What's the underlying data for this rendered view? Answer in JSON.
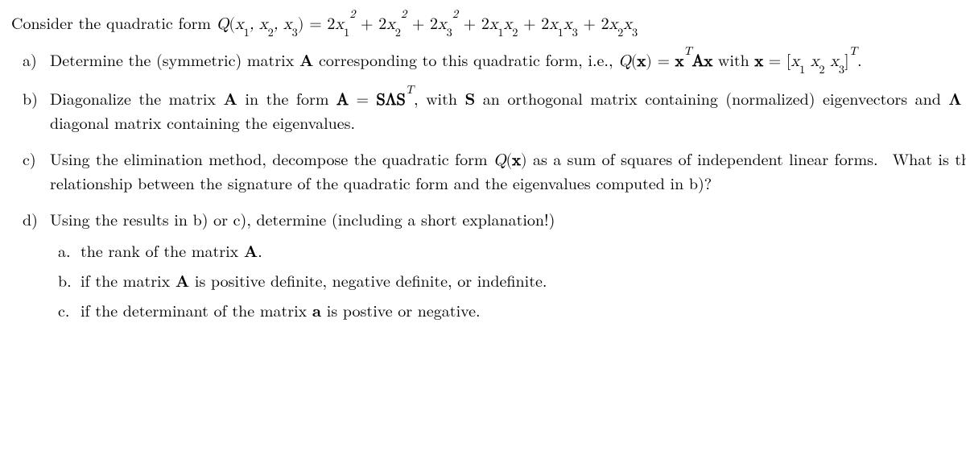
{
  "intro_prefix": "Consider the quadratic form ",
  "intro_formula_html": "<span class=\"math\">Q<span class=\"rm\">(</span>x<sub>1</sub>, x<sub>2</sub>, x<sub>3</sub><span class=\"rm\">)</span> <span class=\"rm\">=</span> <span class=\"rm\">2</span>x<sub>1</sub><sup>2</sup> <span class=\"rm\">+</span> <span class=\"rm\">2</span>x<sub>2</sub><sup>2</sup> <span class=\"rm\">+</span> <span class=\"rm\">2</span>x<sub>3</sub><sup>2</sup> <span class=\"rm\">+</span> <span class=\"rm\">2</span>x<sub>1</sub>x<sub>2</sub> <span class=\"rm\">+</span> <span class=\"rm\">2</span>x<sub>1</sub>x<sub>3</sub> <span class=\"rm\">+</span> <span class=\"rm\">2</span>x<sub>2</sub>x<sub>3</sub></span>",
  "items": [
    {
      "marker": "a)",
      "html": "Determine the (symmetric) matrix <span class=\"bold\">A</span> corresponding to this quadratic form, i.e., <span class=\"math\">Q<span class=\"rm\">(</span><span class=\"bold\">x</span><span class=\"rm\">)</span> <span class=\"rm\">=</span> <span class=\"bold\">x</span><sup>T</sup><span class=\"bold\">Ax</span></span> with <span class=\"math\"><span class=\"bold\">x</span> <span class=\"rm\">=</span> <span class=\"rm\">[</span>x<sub>1</sub>&nbsp;x<sub>2</sub>&nbsp;x<sub>3</sub><span class=\"rm\">]</span><sup>T</sup></span>."
    },
    {
      "marker": "b)",
      "html": "Diagonalize the matrix <span class=\"bold\">A</span> in the form <span class=\"math\"><span class=\"bold\">A</span> <span class=\"rm\">=</span> <span class=\"bold\">SΛS</span><sup>T</sup></span>, with <span class=\"bold\">S</span> an orthogonal matrix containing (normalized) eigenvectors and <span class=\"bold\">Λ</span> a diagonal matrix containing the eigenvalues."
    },
    {
      "marker": "c)",
      "html": "Using the elimination method, decompose the quadratic form <span class=\"math\">Q<span class=\"rm\">(</span><span class=\"bold\">x</span><span class=\"rm\">)</span></span> as a sum of squares of independent linear forms.&nbsp; What is the relationship between the signature of the quadratic form and the eigenvalues computed in b)?"
    },
    {
      "marker": "d)",
      "html": "Using the results in b) or c), determine (including a short explanation!)",
      "sub": [
        {
          "marker": "a.",
          "html": "the rank of the matrix <span class=\"bold\">A</span>."
        },
        {
          "marker": "b.",
          "html": "if the matrix <span class=\"bold\">A</span> is positive definite, negative definite, or indefinite."
        },
        {
          "marker": "c.",
          "html": "if the determinant of the matrix <span class=\"bold\">a</span> is postive or negative."
        }
      ]
    }
  ]
}
